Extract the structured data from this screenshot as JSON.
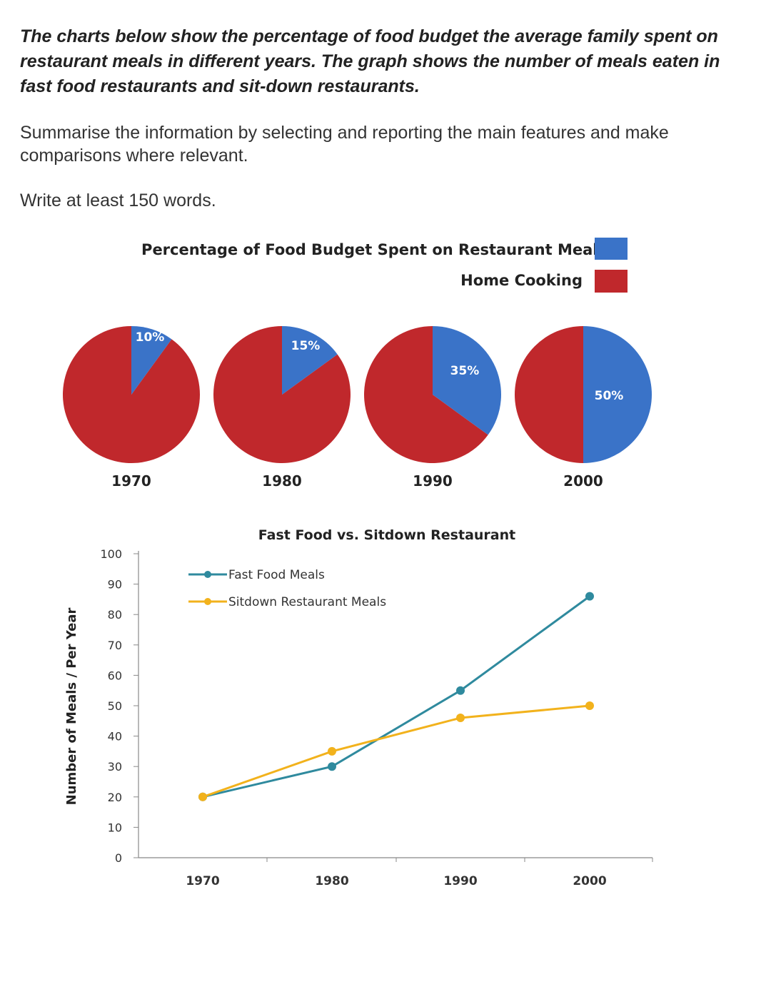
{
  "task": {
    "prompt": "The charts below show the percentage of food budget the average family spent on restaurant meals in different years. The graph shows the number of meals eaten in fast food restaurants and sit-down restaurants.",
    "instruction": "Summarise the information by selecting and reporting the main features and make comparisons where relevant.",
    "word_count": "Write at least 150 words."
  },
  "chart_data": [
    {
      "type": "pie",
      "title": "Percentage of Food Budget Spent on Restaurant Meals",
      "legend": [
        {
          "label": "Percentage of Food Budget Spent on Restaurant Meals",
          "color": "#3a73c8"
        },
        {
          "label": "Home Cooking",
          "color": "#c0282c"
        }
      ],
      "legend_position": "top-right",
      "pies": [
        {
          "year": "1970",
          "restaurant": 10,
          "home": 90,
          "label": "10%"
        },
        {
          "year": "1980",
          "restaurant": 15,
          "home": 85,
          "label": "15%"
        },
        {
          "year": "1990",
          "restaurant": 35,
          "home": 65,
          "label": "35%"
        },
        {
          "year": "2000",
          "restaurant": 50,
          "home": 50,
          "label": "50%"
        }
      ],
      "colors": {
        "restaurant": "#3a73c8",
        "home": "#c0282c"
      }
    },
    {
      "type": "line",
      "title": "Fast Food vs. Sitdown Restaurant",
      "ylabel": "Number of Meals / Per Year",
      "xlabel": "",
      "categories": [
        "1970",
        "1980",
        "1990",
        "2000"
      ],
      "ylim": [
        0,
        100
      ],
      "yticks": [
        "0",
        "10",
        "20",
        "30",
        "40",
        "50",
        "60",
        "70",
        "80",
        "90",
        "100"
      ],
      "grid": false,
      "legend_position": "top-left",
      "series": [
        {
          "name": "Fast Food Meals",
          "values": [
            20,
            30,
            55,
            86
          ],
          "color": "#2f8a9e"
        },
        {
          "name": "Sitdown Restaurant Meals",
          "values": [
            20,
            35,
            46,
            50
          ],
          "color": "#f2b21c"
        }
      ]
    }
  ]
}
